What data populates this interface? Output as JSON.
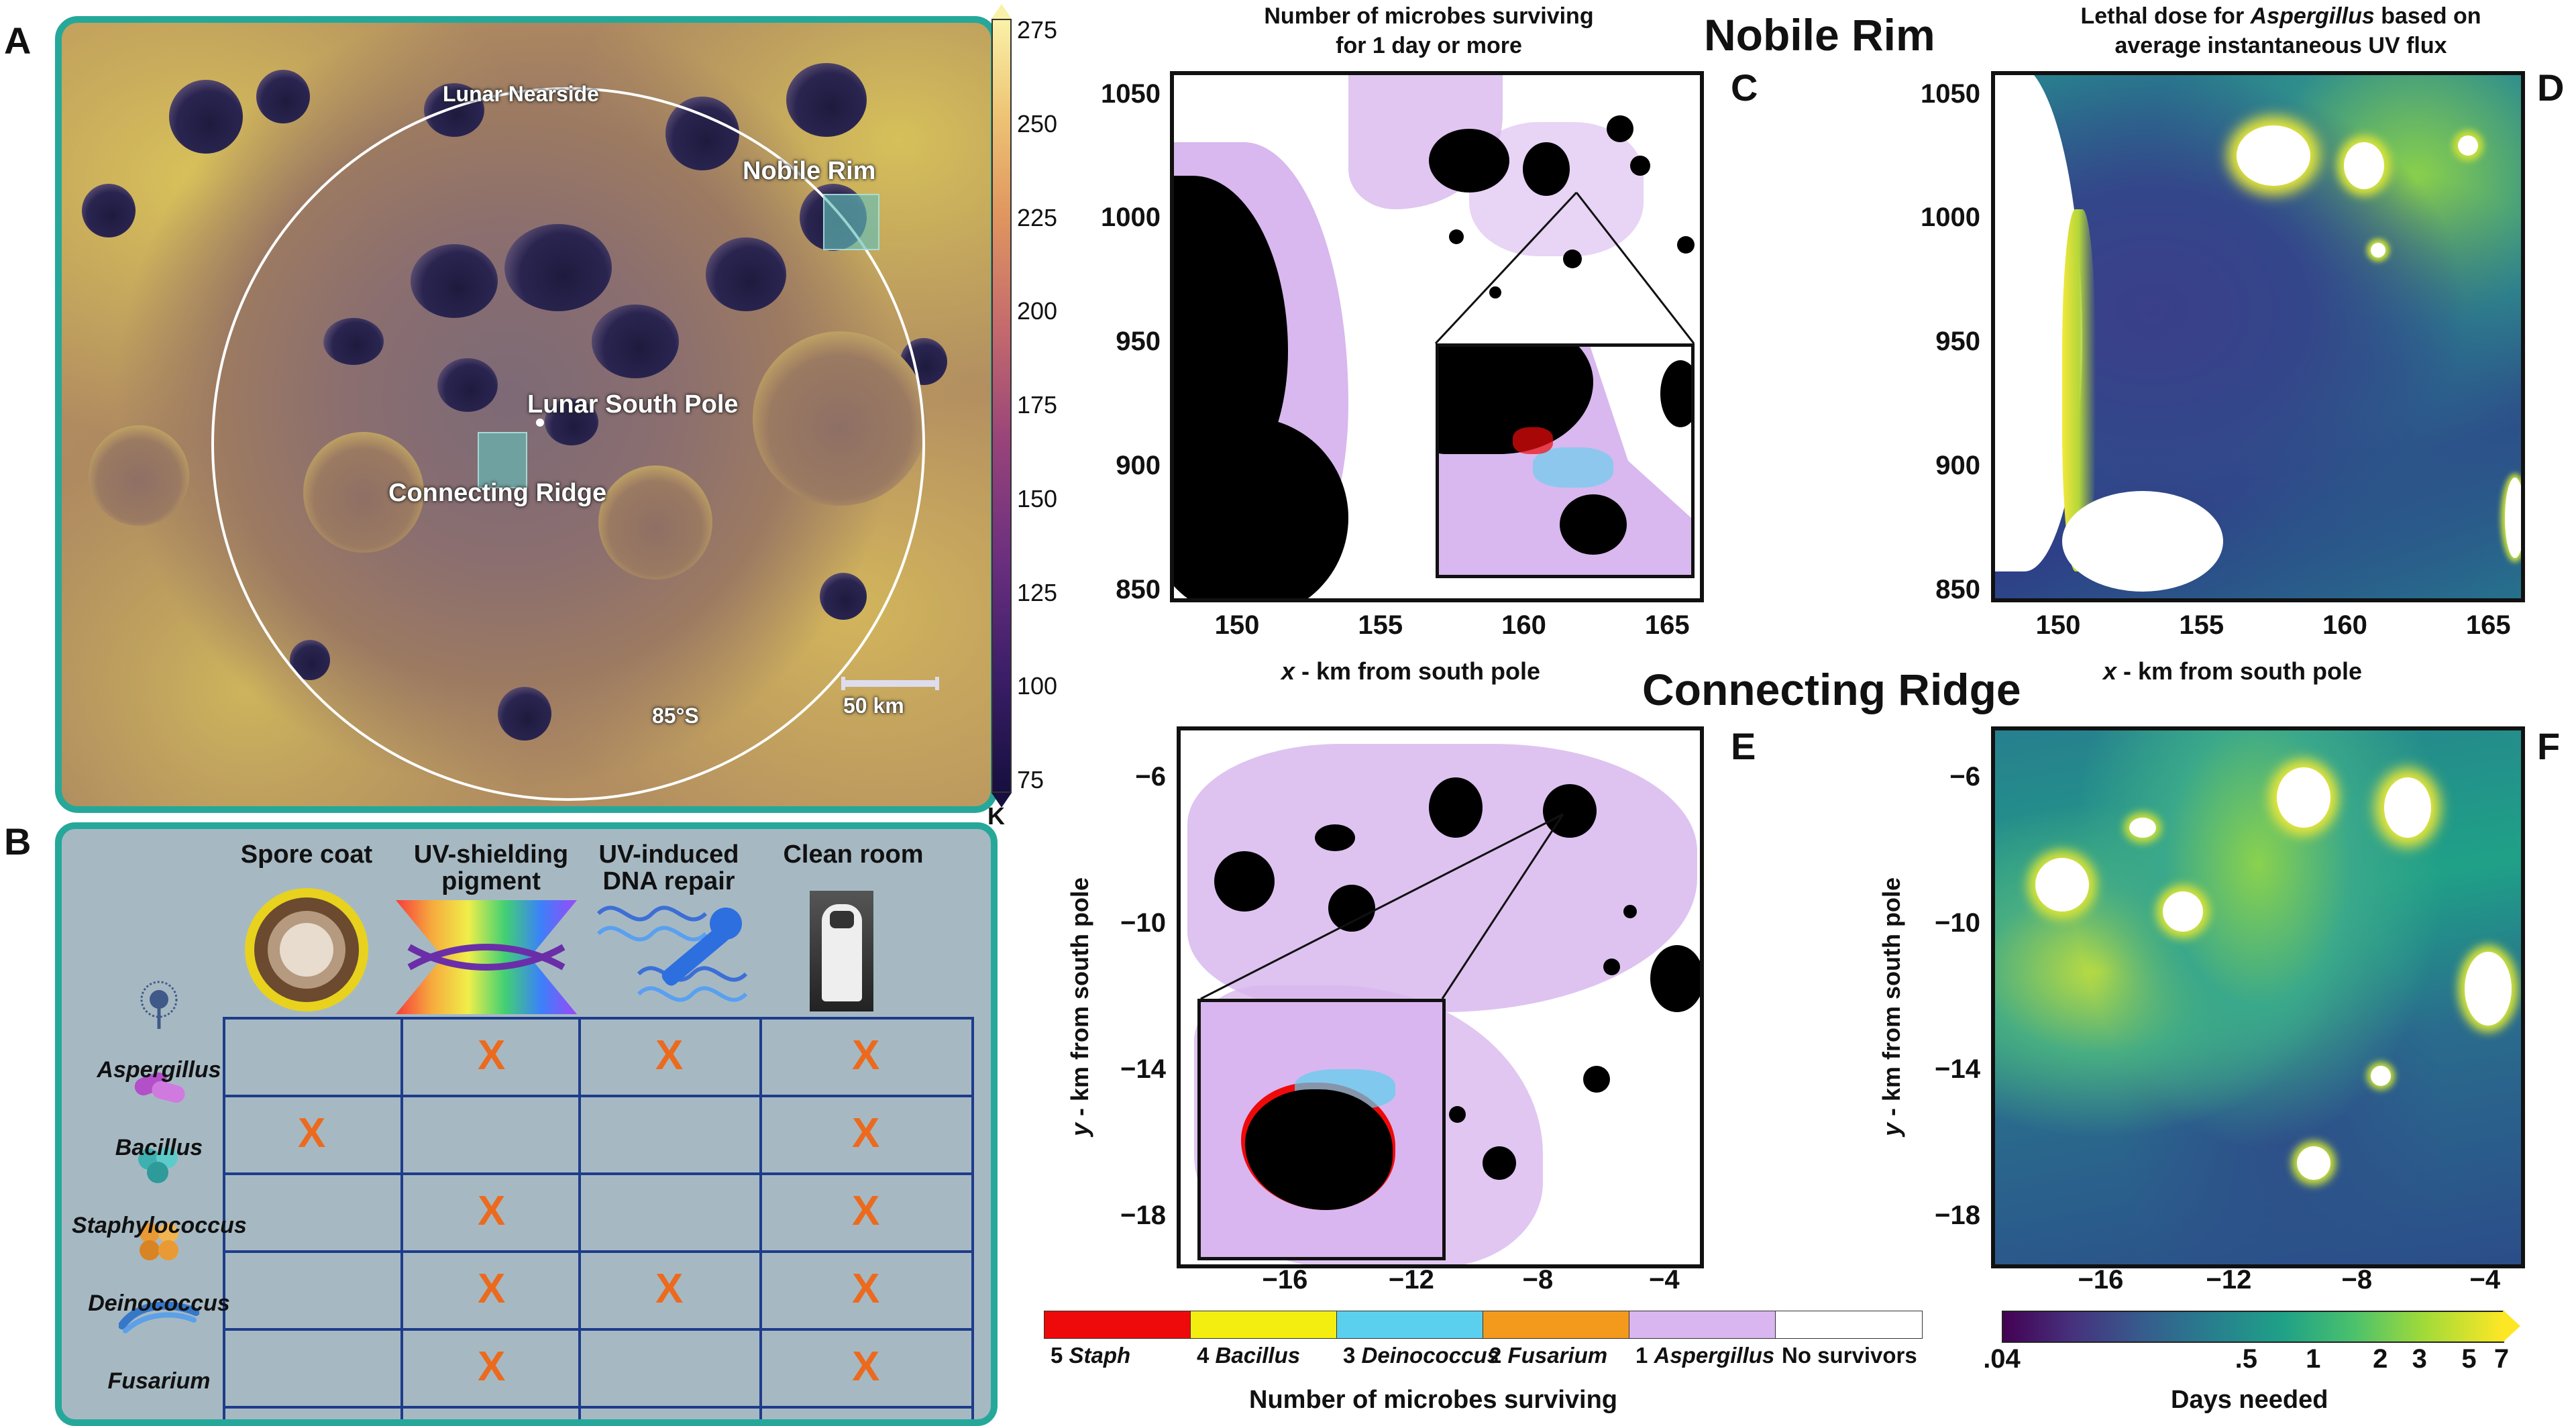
{
  "panels": {
    "A": "A",
    "B": "B",
    "C": "C",
    "D": "D",
    "E": "E",
    "F": "F"
  },
  "moon_map": {
    "labels": {
      "nearside": "Lunar Nearside",
      "nobile_rim": "Nobile Rim",
      "south_pole": "Lunar South Pole",
      "connecting_ridge": "Connecting Ridge",
      "latitude": "85°S",
      "scale": "50 km"
    },
    "colorbar": {
      "ticks": [
        "275",
        "250",
        "225",
        "200",
        "175",
        "150",
        "125",
        "100",
        "75"
      ],
      "unit": "K"
    }
  },
  "table": {
    "columns": [
      "Spore coat",
      "UV-shielding pigment",
      "UV-induced DNA repair",
      "Clean room"
    ],
    "column_lines": [
      [
        "Spore coat"
      ],
      [
        "UV-shielding",
        "pigment"
      ],
      [
        "UV-induced",
        "DNA repair"
      ],
      [
        "Clean room"
      ]
    ],
    "mark": "X",
    "rows": [
      {
        "name": "Aspergillus",
        "marks": [
          false,
          true,
          true,
          true
        ]
      },
      {
        "name": "Bacillus",
        "marks": [
          true,
          false,
          false,
          true
        ]
      },
      {
        "name": "Staphylococcus",
        "marks": [
          false,
          true,
          false,
          true
        ]
      },
      {
        "name": "Deinococcus",
        "marks": [
          false,
          true,
          true,
          true
        ]
      },
      {
        "name": "Fusarium",
        "marks": [
          false,
          true,
          false,
          true
        ]
      }
    ],
    "icon_colors": {
      "Aspergillus": "#3f5a88",
      "Bacillus": "#b24fc9",
      "Staphylococcus": "#3fb0b0",
      "Deinococcus": "#e99a34",
      "Fusarium": "#3777c8"
    }
  },
  "section_titles": {
    "nobile_rim": "Nobile Rim",
    "connecting_ridge": "Connecting Ridge"
  },
  "plot_C": {
    "title_line1": "Number of microbes surviving",
    "title_line2": "for 1 day or more",
    "yticks": [
      "1050",
      "1000",
      "950",
      "900",
      "850"
    ],
    "xticks": [
      "150",
      "155",
      "160",
      "165"
    ],
    "xlabel_var": "x",
    "xlabel_rest": " - km from south pole"
  },
  "plot_D": {
    "title_line1_pre": "Lethal dose for ",
    "title_line1_italic": "Aspergillus",
    "title_line1_post": " based on",
    "title_line2": "average instantaneous UV flux",
    "yticks": [
      "1050",
      "1000",
      "950",
      "900",
      "850"
    ],
    "xticks": [
      "150",
      "155",
      "160",
      "165"
    ],
    "xlabel_var": "x",
    "xlabel_rest": " - km from south pole"
  },
  "plot_E": {
    "yticks": [
      "−6",
      "−10",
      "−14",
      "−18"
    ],
    "xticks": [
      "−16",
      "−12",
      "−8",
      "−4"
    ],
    "ylabel_var": "y",
    "ylabel_rest": " - km from south pole"
  },
  "plot_F": {
    "yticks": [
      "−6",
      "−10",
      "−14",
      "−18"
    ],
    "xticks": [
      "−16",
      "−12",
      "−8",
      "−4"
    ],
    "ylabel_var": "y",
    "ylabel_rest": " - km from south pole"
  },
  "colorbar_E": {
    "segments": [
      {
        "num": "5",
        "name": "Staph",
        "color": "#ee0a0a"
      },
      {
        "num": "4",
        "name": "Bacillus",
        "color": "#f4ee10"
      },
      {
        "num": "3",
        "name": "Deinococcus",
        "color": "#5bd0ee"
      },
      {
        "num": "2",
        "name": "Fusarium",
        "color": "#f39a1c"
      },
      {
        "num": "1",
        "name": "Aspergillus",
        "color": "#d9b6ef"
      },
      {
        "num": "",
        "name": "No survivors",
        "color": "#ffffff"
      }
    ],
    "title": "Number of microbes surviving"
  },
  "colorbar_F": {
    "ticks": [
      ".04",
      ".5",
      "1",
      "2",
      "3",
      "5",
      "7"
    ],
    "tick_values": [
      0.04,
      0.5,
      1,
      2,
      3,
      5,
      7
    ],
    "title": "Days needed"
  }
}
